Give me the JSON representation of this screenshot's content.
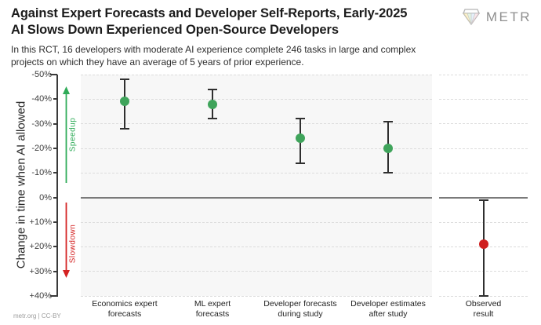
{
  "header": {
    "title_line1": "Against Expert Forecasts and Developer Self-Reports, Early-2025",
    "title_line2": "AI Slows Down Experienced Open-Source Developers",
    "subtitle_line1": "In this RCT, 16 developers with moderate AI experience complete 246 tasks in large and complex",
    "subtitle_line2": "projects on which they have an average of 5 years of prior experience.",
    "logo_text": "METR"
  },
  "chart_data": {
    "type": "scatter",
    "title": "",
    "xlabel": "",
    "ylabel": "Change in time when AI allowed",
    "ylim": [
      -50,
      40
    ],
    "y_axis_inverted": true,
    "y_ticks": [
      -50,
      -40,
      -30,
      -20,
      -10,
      0,
      10,
      20,
      30,
      40
    ],
    "y_tick_labels": [
      "-50%",
      "-40%",
      "-30%",
      "-20%",
      "-10%",
      "0%",
      "+10%",
      "+20%",
      "+30%",
      "+40%"
    ],
    "grid": "horizontal-dashed, solid dark line at 0%",
    "legend_position": "none",
    "annotations": {
      "speedup_label": "Speedup",
      "slowdown_label": "Slowdown",
      "speedup_color": "#2eab57",
      "slowdown_color": "#d42222"
    },
    "categories": [
      "Economics expert forecasts",
      "ML expert forecasts",
      "Developer forecasts during study",
      "Developer estimates after study",
      "Observed result"
    ],
    "points": [
      {
        "label": "Economics expert\nforecasts",
        "mean_pct": -39,
        "ci_pct": [
          -48,
          -28
        ],
        "color": "#3fa45b",
        "panel": "main"
      },
      {
        "label": "ML expert\nforecasts",
        "mean_pct": -38,
        "ci_pct": [
          -44,
          -32
        ],
        "color": "#3fa45b",
        "panel": "main"
      },
      {
        "label": "Developer forecasts\nduring study",
        "mean_pct": -24,
        "ci_pct": [
          -32,
          -14
        ],
        "color": "#3fa45b",
        "panel": "main"
      },
      {
        "label": "Developer estimates\nafter study",
        "mean_pct": -20,
        "ci_pct": [
          -31,
          -10
        ],
        "color": "#3fa45b",
        "panel": "main"
      },
      {
        "label": "Observed\nresult",
        "mean_pct": 19,
        "ci_pct": [
          1,
          40
        ],
        "color": "#cf2020",
        "panel": "observed"
      }
    ]
  },
  "colors": {
    "speedup_green": "#3fa45b",
    "slowdown_red": "#cf2020",
    "error_bar": "#2f2f2f",
    "zero_line": "#7a7a7a",
    "gridline": "#dcdcdc",
    "panel_background": "#f7f7f7",
    "title_text": "#1b1b1b",
    "logo_gray": "#8f8f8f"
  },
  "footer": {
    "credit": "metr.org | CC-BY"
  }
}
